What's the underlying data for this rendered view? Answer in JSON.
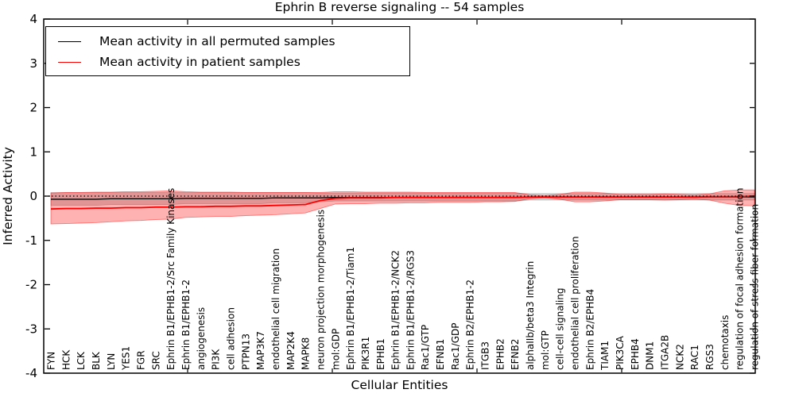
{
  "title": "Ephrin B reverse signaling -- 54 samples",
  "axes": {
    "xlabel": "Cellular Entities",
    "ylabel": "Inferred Activity",
    "yticks": [
      "4",
      "3",
      "2",
      "1",
      "0",
      "-1",
      "-2",
      "-3",
      "-4"
    ]
  },
  "legend": {
    "items": [
      {
        "label": "Mean activity in all permuted samples",
        "color": "#000000"
      },
      {
        "label": "Mean activity in patient samples",
        "color": "#ff0000"
      }
    ]
  },
  "colors": {
    "permuted_line": "#000000",
    "patient_line": "#ff0000",
    "permuted_band": "rgba(0,0,0,0.16)",
    "patient_band": "rgba(255,0,0,0.30)",
    "patient_band_edge": "rgba(255,0,0,0.45)",
    "zero_line": "#000000"
  },
  "chart_data": {
    "type": "line",
    "title": "Ephrin B reverse signaling -- 54 samples",
    "xlabel": "Cellular Entities",
    "ylabel": "Inferred Activity",
    "ylim": [
      -4,
      4
    ],
    "grid": false,
    "zero_reference_line": true,
    "legend_position": "upper left",
    "categories": [
      "FYN",
      "HCK",
      "LCK",
      "BLK",
      "LYN",
      "YES1",
      "FGR",
      "SRC",
      "Ephrin B1/EPHB1-2/Src Family Kinases",
      "Ephrin B1/EPHB1-2",
      "angiogenesis",
      "PI3K",
      "cell adhesion",
      "PTPN13",
      "MAP3K7",
      "endothelial cell migration",
      "MAP2K4",
      "MAPK8",
      "neuron projection morphogenesis",
      "mol:GDP",
      "Ephrin B1/EPHB1-2/Tiam1",
      "PIK3R1",
      "EPHB1",
      "Ephrin B1/EPHB1-2/NCK2",
      "Ephrin B1/EPHB1-2/RGS3",
      "Rac1/GTP",
      "EFNB1",
      "Rac1/GDP",
      "Ephrin B2/EPHB1-2",
      "ITGB3",
      "EPHB2",
      "EFNB2",
      "alphaIIb/beta3 Integrin",
      "mol:GTP",
      "cell-cell signaling",
      "endothelial cell proliferation",
      "Ephrin B2/EPHB4",
      "TIAM1",
      "PIK3CA",
      "EPHB4",
      "DNM1",
      "ITGA2B",
      "NCK2",
      "RAC1",
      "RGS3",
      "chemotaxis",
      "regulation of focal adhesion formation",
      "regulation of stress fiber formation"
    ],
    "series": [
      {
        "name": "Mean activity in all permuted samples",
        "color": "#000000",
        "values": [
          -0.07,
          -0.07,
          -0.07,
          -0.07,
          -0.06,
          -0.06,
          -0.06,
          -0.06,
          -0.06,
          -0.05,
          -0.05,
          -0.05,
          -0.05,
          -0.05,
          -0.05,
          -0.04,
          -0.04,
          -0.04,
          -0.04,
          -0.03,
          -0.03,
          -0.03,
          -0.03,
          -0.03,
          -0.03,
          -0.03,
          -0.03,
          -0.03,
          -0.03,
          -0.03,
          -0.03,
          -0.03,
          -0.02,
          -0.02,
          -0.02,
          -0.02,
          -0.02,
          -0.02,
          -0.02,
          -0.02,
          -0.02,
          -0.02,
          -0.02,
          -0.02,
          -0.02,
          -0.02,
          -0.02,
          -0.02
        ],
        "band_upper": [
          0.08,
          0.08,
          0.08,
          0.08,
          0.08,
          0.08,
          0.08,
          0.08,
          0.08,
          0.08,
          0.08,
          0.08,
          0.08,
          0.08,
          0.08,
          0.08,
          0.08,
          0.08,
          0.07,
          0.07,
          0.07,
          0.07,
          0.07,
          0.07,
          0.07,
          0.07,
          0.07,
          0.07,
          0.07,
          0.07,
          0.07,
          0.07,
          0.06,
          0.06,
          0.06,
          0.06,
          0.06,
          0.06,
          0.06,
          0.06,
          0.06,
          0.06,
          0.06,
          0.06,
          0.06,
          0.06,
          0.06,
          0.06
        ],
        "band_lower": [
          -0.21,
          -0.21,
          -0.21,
          -0.21,
          -0.19,
          -0.19,
          -0.19,
          -0.19,
          -0.19,
          -0.17,
          -0.17,
          -0.17,
          -0.17,
          -0.17,
          -0.17,
          -0.15,
          -0.15,
          -0.15,
          -0.13,
          -0.11,
          -0.11,
          -0.11,
          -0.11,
          -0.11,
          -0.11,
          -0.11,
          -0.11,
          -0.11,
          -0.11,
          -0.11,
          -0.11,
          -0.11,
          -0.09,
          -0.09,
          -0.09,
          -0.09,
          -0.09,
          -0.09,
          -0.09,
          -0.09,
          -0.09,
          -0.09,
          -0.09,
          -0.09,
          -0.09,
          -0.09,
          -0.09,
          -0.09
        ]
      },
      {
        "name": "Mean activity in patient samples",
        "color": "#ff0000",
        "values": [
          -0.29,
          -0.28,
          -0.28,
          -0.27,
          -0.27,
          -0.26,
          -0.26,
          -0.25,
          -0.25,
          -0.24,
          -0.24,
          -0.23,
          -0.23,
          -0.22,
          -0.22,
          -0.21,
          -0.2,
          -0.19,
          -0.1,
          -0.05,
          -0.04,
          -0.04,
          -0.04,
          -0.03,
          -0.03,
          -0.03,
          -0.03,
          -0.03,
          -0.03,
          -0.03,
          -0.03,
          -0.03,
          -0.02,
          -0.02,
          -0.02,
          -0.02,
          -0.02,
          -0.02,
          -0.02,
          -0.02,
          -0.02,
          -0.02,
          -0.02,
          -0.02,
          -0.01,
          -0.01,
          -0.01,
          0.0
        ],
        "band_upper": [
          0.07,
          0.08,
          0.08,
          0.09,
          0.09,
          0.1,
          0.1,
          0.11,
          0.12,
          0.1,
          0.09,
          0.09,
          0.09,
          0.08,
          0.08,
          0.08,
          0.08,
          0.08,
          0.08,
          0.1,
          0.1,
          0.09,
          0.09,
          0.09,
          0.09,
          0.08,
          0.08,
          0.08,
          0.08,
          0.08,
          0.08,
          0.08,
          0.03,
          0.015,
          0.04,
          0.09,
          0.09,
          0.07,
          0.04,
          0.04,
          0.04,
          0.05,
          0.04,
          0.03,
          0.05,
          0.12,
          0.14,
          0.14
        ],
        "band_lower": [
          -0.63,
          -0.62,
          -0.61,
          -0.6,
          -0.58,
          -0.56,
          -0.55,
          -0.53,
          -0.52,
          -0.48,
          -0.47,
          -0.46,
          -0.46,
          -0.44,
          -0.43,
          -0.42,
          -0.4,
          -0.38,
          -0.28,
          -0.18,
          -0.17,
          -0.17,
          -0.16,
          -0.16,
          -0.15,
          -0.15,
          -0.14,
          -0.14,
          -0.14,
          -0.13,
          -0.13,
          -0.12,
          -0.06,
          -0.04,
          -0.07,
          -0.13,
          -0.13,
          -0.11,
          -0.08,
          -0.08,
          -0.08,
          -0.09,
          -0.08,
          -0.07,
          -0.09,
          -0.16,
          -0.21,
          -0.22
        ]
      }
    ]
  }
}
